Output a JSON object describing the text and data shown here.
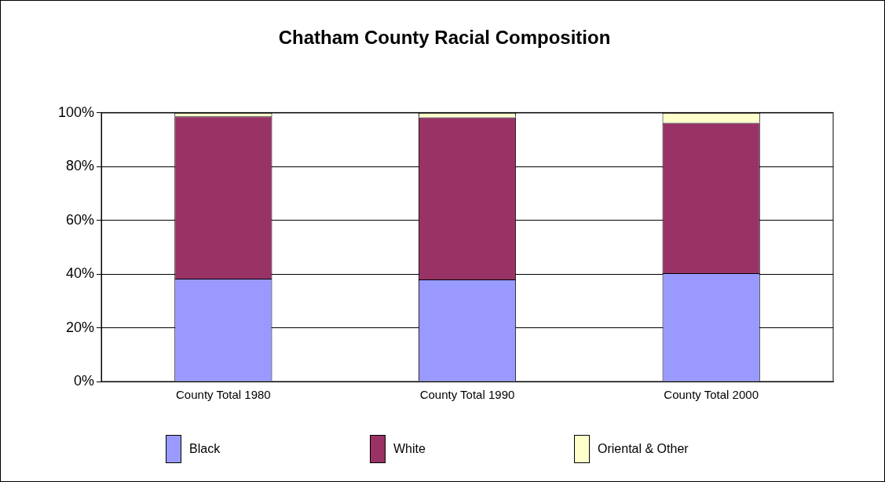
{
  "chart_data": {
    "type": "bar",
    "title": "Chatham County Racial Composition",
    "categories": [
      "County Total 1980",
      "County Total 1990",
      "County Total 2000"
    ],
    "stacked": true,
    "series": [
      {
        "name": "Black",
        "color": "#9999ff",
        "values": [
          38.3,
          38,
          40.3
        ]
      },
      {
        "name": "White",
        "color": "#993366",
        "values": [
          60.4,
          60.3,
          56
        ]
      },
      {
        "name": "Oriental & Other",
        "color": "#ffffcc",
        "values": [
          1.3,
          1.7,
          3.7
        ]
      }
    ],
    "ylim": [
      0,
      100
    ],
    "yticks": [
      {
        "value": 0,
        "label": "0%"
      },
      {
        "value": 20,
        "label": "20%"
      },
      {
        "value": 40,
        "label": "40%"
      },
      {
        "value": 60,
        "label": "60%"
      },
      {
        "value": 80,
        "label": "80%"
      },
      {
        "value": 100,
        "label": "100%"
      }
    ],
    "grid": "y",
    "legend": "bottom"
  }
}
